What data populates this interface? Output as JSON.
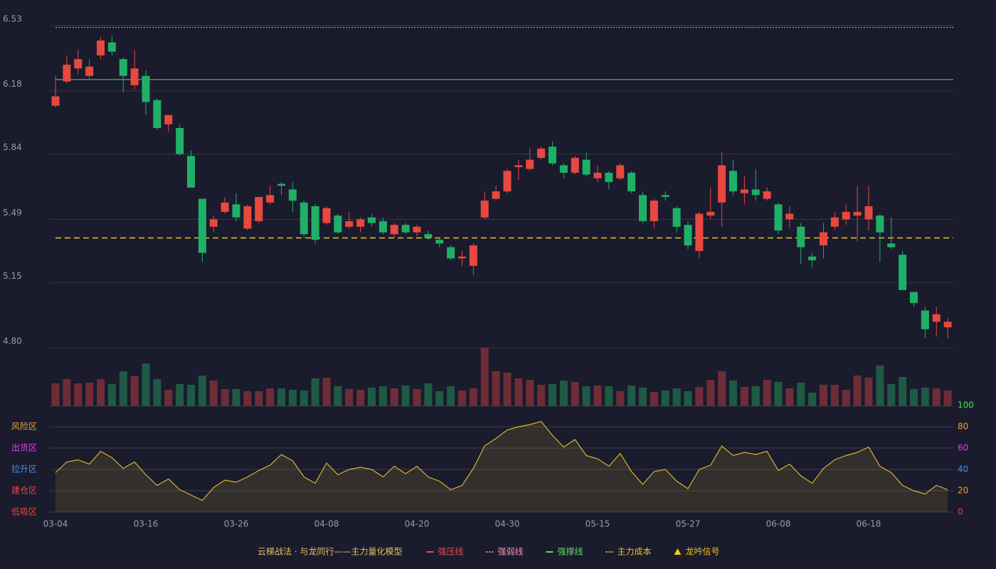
{
  "chart_data": {
    "type": "candlestick",
    "categories": [
      "03-04",
      null,
      null,
      null,
      null,
      null,
      null,
      null,
      "03-16",
      null,
      null,
      null,
      null,
      null,
      null,
      null,
      "03-26",
      null,
      null,
      null,
      null,
      null,
      null,
      null,
      "04-08",
      null,
      null,
      null,
      null,
      null,
      null,
      null,
      "04-20",
      null,
      null,
      null,
      null,
      null,
      null,
      null,
      "04-30",
      null,
      null,
      null,
      null,
      null,
      null,
      null,
      "05-15",
      null,
      null,
      null,
      null,
      null,
      null,
      null,
      "05-27",
      null,
      null,
      null,
      null,
      null,
      null,
      null,
      "06-08",
      null,
      null,
      null,
      null,
      null,
      null,
      null,
      "06-18",
      null,
      null,
      null,
      null,
      null,
      null,
      null
    ],
    "open": [
      6.1,
      6.23,
      6.3,
      6.26,
      6.37,
      6.44,
      6.35,
      6.21,
      6.26,
      6.13,
      6.0,
      5.98,
      5.83,
      5.6,
      5.45,
      5.53,
      5.57,
      5.44,
      5.48,
      5.58,
      5.68,
      5.65,
      5.58,
      5.56,
      5.47,
      5.51,
      5.45,
      5.45,
      5.5,
      5.48,
      5.41,
      5.46,
      5.42,
      5.41,
      5.38,
      5.34,
      5.28,
      5.24,
      5.5,
      5.6,
      5.64,
      5.77,
      5.76,
      5.82,
      5.88,
      5.78,
      5.74,
      5.81,
      5.71,
      5.74,
      5.71,
      5.74,
      5.62,
      5.48,
      5.62,
      5.55,
      5.46,
      5.32,
      5.51,
      5.58,
      5.75,
      5.63,
      5.65,
      5.6,
      5.57,
      5.49,
      5.45,
      5.29,
      5.35,
      5.45,
      5.49,
      5.51,
      5.49,
      5.51,
      5.36,
      5.3,
      5.1,
      5.0,
      4.94,
      4.91
    ],
    "high": [
      6.26,
      6.37,
      6.4,
      6.35,
      6.47,
      6.48,
      6.36,
      6.4,
      6.29,
      6.14,
      6.05,
      6.0,
      5.86,
      5.6,
      5.51,
      5.61,
      5.63,
      5.57,
      5.61,
      5.67,
      5.69,
      5.69,
      5.59,
      5.57,
      5.56,
      5.52,
      5.53,
      5.5,
      5.52,
      5.5,
      5.47,
      5.47,
      5.46,
      5.43,
      5.39,
      5.35,
      5.32,
      5.36,
      5.64,
      5.67,
      5.76,
      5.81,
      5.87,
      5.88,
      5.91,
      5.79,
      5.83,
      5.85,
      5.78,
      5.75,
      5.79,
      5.75,
      5.64,
      5.6,
      5.64,
      5.56,
      5.48,
      5.53,
      5.66,
      5.85,
      5.81,
      5.72,
      5.76,
      5.66,
      5.58,
      5.56,
      5.47,
      5.31,
      5.47,
      5.53,
      5.57,
      5.67,
      5.67,
      5.52,
      5.5,
      5.32,
      5.1,
      5.02,
      5.02,
      4.96
    ],
    "low": [
      6.09,
      6.22,
      6.27,
      6.24,
      6.35,
      6.37,
      6.17,
      6.19,
      6.05,
      5.97,
      5.96,
      5.83,
      5.66,
      5.26,
      5.42,
      5.52,
      5.48,
      5.43,
      5.47,
      5.57,
      5.62,
      5.53,
      5.39,
      5.36,
      5.46,
      5.41,
      5.44,
      5.42,
      5.45,
      5.41,
      5.39,
      5.41,
      5.4,
      5.38,
      5.34,
      5.27,
      5.24,
      5.19,
      5.49,
      5.59,
      5.63,
      5.7,
      5.75,
      5.81,
      5.78,
      5.71,
      5.73,
      5.72,
      5.69,
      5.65,
      5.7,
      5.63,
      5.47,
      5.44,
      5.59,
      5.42,
      5.33,
      5.28,
      5.49,
      5.45,
      5.62,
      5.57,
      5.59,
      5.59,
      5.41,
      5.44,
      5.25,
      5.23,
      5.28,
      5.43,
      5.46,
      5.37,
      5.43,
      5.26,
      5.33,
      5.11,
      5.02,
      4.85,
      4.86,
      4.85
    ],
    "close": [
      6.15,
      6.32,
      6.35,
      6.31,
      6.45,
      6.39,
      6.26,
      6.3,
      6.12,
      5.98,
      6.05,
      5.84,
      5.66,
      5.31,
      5.49,
      5.58,
      5.5,
      5.56,
      5.61,
      5.62,
      5.67,
      5.59,
      5.41,
      5.38,
      5.55,
      5.42,
      5.48,
      5.49,
      5.47,
      5.42,
      5.46,
      5.42,
      5.45,
      5.39,
      5.36,
      5.28,
      5.29,
      5.35,
      5.59,
      5.64,
      5.75,
      5.78,
      5.81,
      5.87,
      5.79,
      5.74,
      5.82,
      5.73,
      5.74,
      5.69,
      5.78,
      5.64,
      5.48,
      5.59,
      5.61,
      5.45,
      5.35,
      5.52,
      5.53,
      5.78,
      5.64,
      5.65,
      5.62,
      5.64,
      5.43,
      5.52,
      5.34,
      5.27,
      5.42,
      5.5,
      5.53,
      5.53,
      5.56,
      5.42,
      5.34,
      5.11,
      5.04,
      4.9,
      4.98,
      4.94
    ],
    "up_color": "#e8483f",
    "down_color": "#1fb067",
    "ylim": [
      4.8,
      6.53
    ],
    "yticks": [
      {
        "value": 4.8,
        "label": "4.80"
      },
      5.15,
      5.49,
      5.84,
      6.18,
      6.53
    ],
    "grid": true,
    "volume": [
      32,
      38,
      32,
      33,
      38,
      31,
      49,
      42,
      60,
      38,
      23,
      31,
      30,
      43,
      36,
      24,
      24,
      21,
      21,
      25,
      25,
      23,
      22,
      39,
      40,
      28,
      24,
      23,
      26,
      28,
      25,
      29,
      24,
      32,
      21,
      28,
      22,
      25,
      82,
      49,
      47,
      39,
      37,
      30,
      31,
      36,
      34,
      28,
      29,
      28,
      21,
      29,
      26,
      20,
      22,
      25,
      21,
      27,
      37,
      49,
      36,
      27,
      28,
      37,
      34,
      25,
      33,
      19,
      30,
      30,
      23,
      43,
      40,
      57,
      31,
      41,
      24,
      26,
      25,
      22
    ],
    "volume_up_color": "#6e2d36",
    "volume_down_color": "#1e5a44",
    "reference_lines": [
      {
        "name": "强压线",
        "color": "#f04a40",
        "style": "solid"
      },
      {
        "name": "强弱线",
        "color": "#ff8ea8",
        "style": "dotted",
        "value": 6.52
      },
      {
        "name": "强撑线",
        "color": "#55e055",
        "style": "solid",
        "value": 6.24
      },
      {
        "name": "主力成本",
        "color": "#f0c419",
        "style": "dashed",
        "value": 5.39
      }
    ],
    "signal": {
      "name": "龙吟信号",
      "color": "#f0c419"
    },
    "legend_title": "云梯战法 · 与龙同行——主力量化模型",
    "indicator": {
      "values": [
        37,
        47,
        49,
        45,
        57,
        51,
        41,
        47,
        35,
        25,
        31,
        21,
        16,
        11,
        23,
        30,
        28,
        33,
        39,
        44,
        54,
        48,
        33,
        27,
        46,
        35,
        40,
        42,
        40,
        33,
        43,
        36,
        43,
        33,
        29,
        21,
        25,
        41,
        62,
        69,
        77,
        80,
        82,
        85,
        72,
        61,
        68,
        53,
        50,
        43,
        55,
        38,
        26,
        38,
        40,
        29,
        22,
        40,
        44,
        62,
        53,
        56,
        54,
        57,
        39,
        45,
        34,
        27,
        41,
        49,
        53,
        56,
        61,
        43,
        37,
        25,
        20,
        17,
        25,
        21
      ],
      "color": "#d8b62a",
      "ylim": [
        0,
        100
      ],
      "yticks": [
        0,
        20,
        40,
        60,
        80,
        100
      ],
      "ytick_colors": [
        "#e8483f",
        "#f0a030",
        "#4a90e8",
        "#e040e0",
        "#f0a030",
        "#55e055"
      ],
      "zones": [
        {
          "label": "风险区",
          "value": 80,
          "color": "#f0a030"
        },
        {
          "label": "出货区",
          "value": 60,
          "color": "#e040e0"
        },
        {
          "label": "拉升区",
          "value": 40,
          "color": "#4a90e8"
        },
        {
          "label": "建仓区",
          "value": 20,
          "color": "#e8483f"
        },
        {
          "label": "低吸区",
          "value": 0,
          "color": "#e8483f"
        }
      ]
    }
  }
}
